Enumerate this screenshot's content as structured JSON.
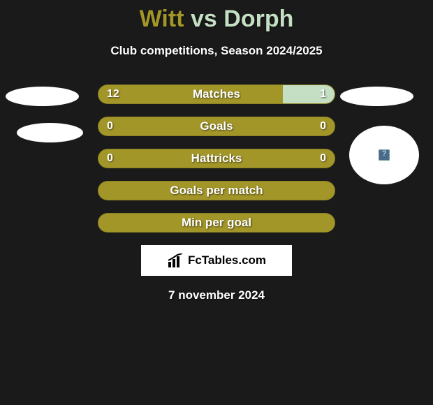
{
  "title": {
    "player1": "Witt",
    "vs": "vs",
    "player2": "Dorph",
    "player1_color": "#a39629",
    "vs_color": "#c4dfc4",
    "player2_color": "#c4dfc4"
  },
  "subtitle": "Club competitions, Season 2024/2025",
  "stats": {
    "bar_bg_color": "#a39629",
    "right_accent_color": "#c4dfc4",
    "text_color": "#ffffff",
    "rows": [
      {
        "label": "Matches",
        "left": "12",
        "right": "1",
        "left_pct": 78,
        "right_pct": 22,
        "show_values": true
      },
      {
        "label": "Goals",
        "left": "0",
        "right": "0",
        "left_pct": 100,
        "right_pct": 0,
        "show_values": true
      },
      {
        "label": "Hattricks",
        "left": "0",
        "right": "0",
        "left_pct": 100,
        "right_pct": 0,
        "show_values": true
      },
      {
        "label": "Goals per match",
        "left": "",
        "right": "",
        "left_pct": 100,
        "right_pct": 0,
        "show_values": false
      },
      {
        "label": "Min per goal",
        "left": "",
        "right": "",
        "left_pct": 100,
        "right_pct": 0,
        "show_values": false
      }
    ]
  },
  "brand": "FcTables.com",
  "date": "7 november 2024",
  "colors": {
    "background": "#1a1a1a",
    "ellipse": "#ffffff"
  }
}
